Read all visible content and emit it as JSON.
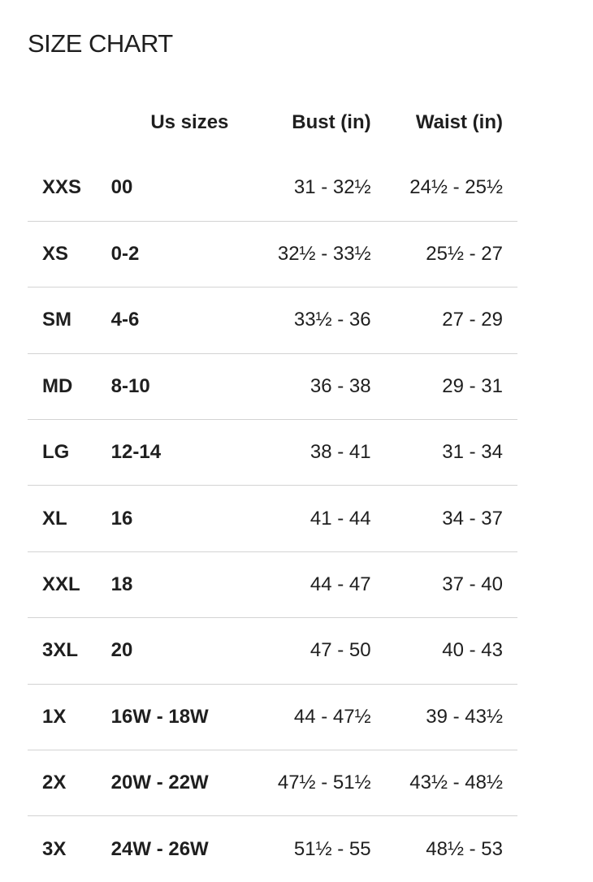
{
  "title": "SIZE CHART",
  "columns": {
    "size": "",
    "us": "Us sizes",
    "bust": "Bust (in)",
    "waist": "Waist (in)"
  },
  "rows": [
    {
      "size": "XXS",
      "us": "00",
      "bust": "31 - 32½",
      "waist": "24½ - 25½"
    },
    {
      "size": "XS",
      "us": "0-2",
      "bust": "32½ - 33½",
      "waist": "25½ - 27"
    },
    {
      "size": "SM",
      "us": "4-6",
      "bust": "33½ - 36",
      "waist": "27 - 29"
    },
    {
      "size": "MD",
      "us": "8-10",
      "bust": "36 - 38",
      "waist": "29 - 31"
    },
    {
      "size": "LG",
      "us": "12-14",
      "bust": "38 - 41",
      "waist": "31 - 34"
    },
    {
      "size": "XL",
      "us": "16",
      "bust": "41 - 44",
      "waist": "34 - 37"
    },
    {
      "size": "XXL",
      "us": "18",
      "bust": "44 - 47",
      "waist": "37 - 40"
    },
    {
      "size": "3XL",
      "us": "20",
      "bust": "47 - 50",
      "waist": "40 - 43"
    },
    {
      "size": "1X",
      "us": "16W - 18W",
      "bust": "44 - 47½",
      "waist": "39 - 43½"
    },
    {
      "size": "2X",
      "us": "20W - 22W",
      "bust": "47½ - 51½",
      "waist": "43½ - 48½"
    },
    {
      "size": "3X",
      "us": "24W - 26W",
      "bust": "51½ - 55",
      "waist": "48½ - 53"
    }
  ]
}
